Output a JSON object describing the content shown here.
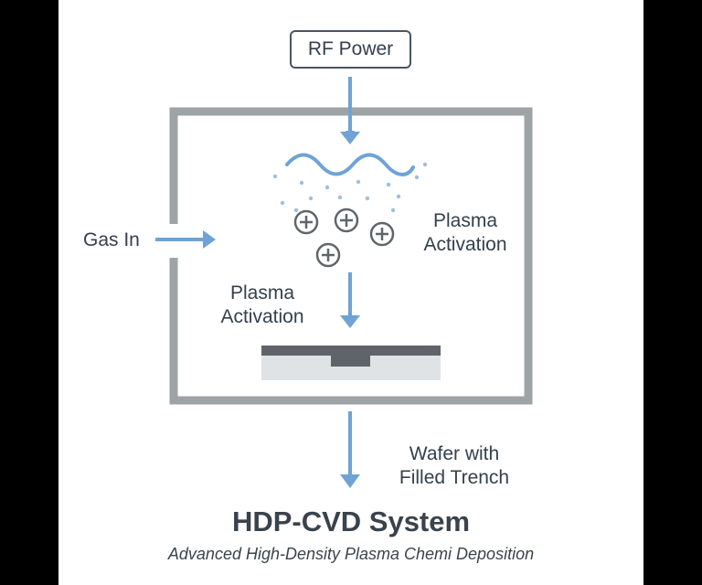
{
  "diagram": {
    "rf_power_label": "RF Power",
    "gas_in_label": "Gas In",
    "plasma_activation_right": [
      "Plasma",
      "Activation"
    ],
    "plasma_activation_left": [
      "Plasma",
      "Activation"
    ],
    "wafer_label": [
      "Wafer with",
      "Filled Trench"
    ],
    "title": "HDP-CVD System",
    "subtitle": "Advanced High-Density Plasma Chemi Deposition"
  },
  "colors": {
    "arrow": "#6fa3d6",
    "chamber_wall": "#9ea3a6",
    "text": "#33404d",
    "wafer_film": "#5e6469",
    "wafer_substrate": "#dfe3e6",
    "ion": "#5f666b"
  },
  "icons": {
    "ion": "plus-circle-icon",
    "plasma_wave": "wave-icon"
  }
}
